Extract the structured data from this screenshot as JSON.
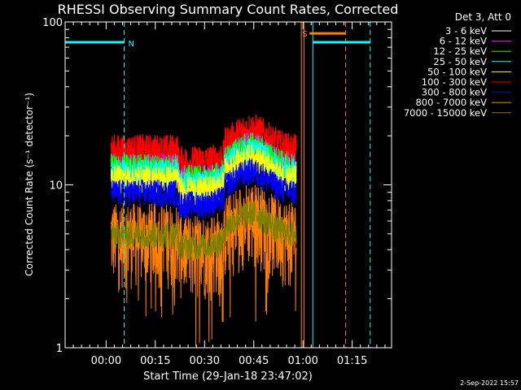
{
  "chart_data": {
    "type": "line",
    "title": "RHESSI Observing Summary Count Rates, Corrected",
    "xlabel": "Start Time (29-Jan-18 23:47:02)",
    "ylabel": "Corrected Count Rate (s⁻¹ detector⁻¹)",
    "yscale": "log",
    "ylim": [
      1,
      100
    ],
    "yticks": [
      {
        "value": 1,
        "label": "1"
      },
      {
        "value": 10,
        "label": "10"
      },
      {
        "value": 100,
        "label": "100"
      }
    ],
    "xlim_minutes": [
      -12.5,
      87
    ],
    "xticks": [
      {
        "minute": 0,
        "label": "00:00"
      },
      {
        "minute": 15,
        "label": "00:15"
      },
      {
        "minute": 30,
        "label": "00:30"
      },
      {
        "minute": 45,
        "label": "00:45"
      },
      {
        "minute": 60,
        "label": "01:00"
      },
      {
        "minute": 75,
        "label": "01:15"
      }
    ],
    "legend": {
      "title": "Det 3, Att 0",
      "placement": "outside-right"
    },
    "series": [
      {
        "name": "3 - 6 keV",
        "color": "#ffffff",
        "value": 12
      },
      {
        "name": "6 - 12 keV",
        "color": "#ff00ff",
        "value": 13
      },
      {
        "name": "12 - 25 keV",
        "color": "#00ff00",
        "value": 13
      },
      {
        "name": "25 - 50 keV",
        "color": "#00ffff",
        "value": 12
      },
      {
        "name": "50 - 100 keV",
        "color": "#ffff00",
        "value": 11
      },
      {
        "name": "100 - 300 keV",
        "color": "#ff0000",
        "value": 16
      },
      {
        "name": "300 - 800 keV",
        "color": "#0000ff",
        "value": 9
      },
      {
        "name": "800 - 7000 keV",
        "color": "#ff8000",
        "value": 5
      },
      {
        "name": "7000 - 15000 keV",
        "color": "#808000",
        "value": 5
      }
    ],
    "annotations": [
      {
        "label": "N",
        "color": "#00ffff",
        "from_minute": -12.5,
        "to_minute": 5.5,
        "level": 75
      },
      {
        "label": "",
        "color": "#00ffff",
        "from_minute": 63,
        "to_minute": 80.5,
        "level": 75
      },
      {
        "label": "S",
        "color": "#ff8000",
        "from_minute": 62,
        "to_minute": 73,
        "level": 85
      }
    ],
    "vlines": [
      {
        "minute": -12.5,
        "color": "#00ffff",
        "style": "solid"
      },
      {
        "minute": 5.5,
        "color": "#00ffff",
        "style": "dashed"
      },
      {
        "minute": 63,
        "color": "#00ffff",
        "style": "solid"
      },
      {
        "minute": 80.5,
        "color": "#00ffff",
        "style": "dashed"
      },
      {
        "minute": 59.5,
        "color": "#ff8000",
        "style": "solid"
      },
      {
        "minute": 60.3,
        "color": "#ff8000",
        "style": "solid"
      },
      {
        "minute": 73,
        "color": "#ff8000",
        "style": "dashed"
      }
    ]
  },
  "footer": {
    "date": "2-Sep-2022 15:57"
  }
}
